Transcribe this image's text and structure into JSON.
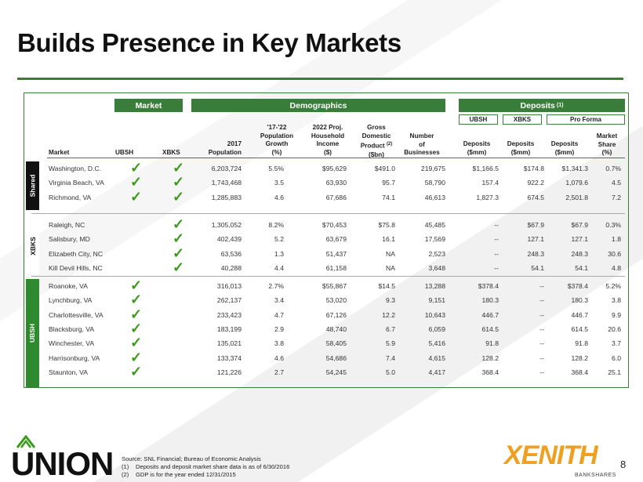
{
  "title": "Builds Presence in Key Markets",
  "headers": {
    "market_box": "Market",
    "demographics_box": "Demographics",
    "deposits_box": "Deposits",
    "deposits_note": "(1)",
    "sub_ubsh": "UBSH",
    "sub_xbks": "XBKS",
    "sub_proforma": "Pro Forma"
  },
  "columns": {
    "market": "Market",
    "ubsh": "UBSH",
    "xbks": "XBKS",
    "pop_l1": "2017",
    "pop_l2": "Population",
    "growth_l1": "'17-'22",
    "growth_l2": "Population",
    "growth_l3": "Growth",
    "growth_l4": "(%)",
    "income_l1": "2022 Proj.",
    "income_l2": "Household",
    "income_l3": "Income",
    "income_l4": "($)",
    "gdp_l1": "Gross",
    "gdp_l2": "Domestic",
    "gdp_l3": "Product",
    "gdp_note": "(2)",
    "gdp_l4": "($bn)",
    "biz_l1": "Number",
    "biz_l2": "of",
    "biz_l3": "Businesses",
    "dep1_l1": "Deposits",
    "dep1_l2": "($mm)",
    "dep2_l1": "Deposits",
    "dep2_l2": "($mm)",
    "dep3_l1": "Deposits",
    "dep3_l2": "($mm)",
    "share_l1": "Market",
    "share_l2": "Share",
    "share_l3": "(%)"
  },
  "check_glyph": "✓",
  "groups": [
    {
      "label": "Shared",
      "rows": [
        {
          "market": "Washington, D.C.",
          "ubsh": true,
          "xbks": true,
          "pop": "6,203,724",
          "growth": "5.5%",
          "income": "$95,629",
          "gdp": "$491.0",
          "biz": "219,675",
          "dep_ubsh": "$1,166.5",
          "dep_xbks": "$174.8",
          "dep_pf": "$1,341.3",
          "share": "0.7%"
        },
        {
          "market": "Virginia Beach, VA",
          "ubsh": true,
          "xbks": true,
          "pop": "1,743,468",
          "growth": "3.5",
          "income": "63,930",
          "gdp": "95.7",
          "biz": "58,790",
          "dep_ubsh": "157.4",
          "dep_xbks": "922.2",
          "dep_pf": "1,079.6",
          "share": "4.5"
        },
        {
          "market": "Richmond, VA",
          "ubsh": true,
          "xbks": true,
          "pop": "1,285,883",
          "growth": "4.6",
          "income": "67,686",
          "gdp": "74.1",
          "biz": "46,613",
          "dep_ubsh": "1,827.3",
          "dep_xbks": "674.5",
          "dep_pf": "2,501.8",
          "share": "7.2"
        }
      ]
    },
    {
      "label": "XBKS",
      "rows": [
        {
          "market": "Raleigh, NC",
          "ubsh": false,
          "xbks": true,
          "pop": "1,305,052",
          "growth": "8.2%",
          "income": "$70,453",
          "gdp": "$75.8",
          "biz": "45,485",
          "dep_ubsh": "--",
          "dep_xbks": "$67.9",
          "dep_pf": "$67.9",
          "share": "0.3%"
        },
        {
          "market": "Salisbury, MD",
          "ubsh": false,
          "xbks": true,
          "pop": "402,439",
          "growth": "5.2",
          "income": "63,679",
          "gdp": "16.1",
          "biz": "17,569",
          "dep_ubsh": "--",
          "dep_xbks": "127.1",
          "dep_pf": "127.1",
          "share": "1.8"
        },
        {
          "market": "Elizabeth City, NC",
          "ubsh": false,
          "xbks": true,
          "pop": "63,536",
          "growth": "1.3",
          "income": "51,437",
          "gdp": "NA",
          "biz": "2,523",
          "dep_ubsh": "--",
          "dep_xbks": "248.3",
          "dep_pf": "248.3",
          "share": "30.6"
        },
        {
          "market": "Kill Devil Hills, NC",
          "ubsh": false,
          "xbks": true,
          "pop": "40,288",
          "growth": "4.4",
          "income": "61,158",
          "gdp": "NA",
          "biz": "3,648",
          "dep_ubsh": "--",
          "dep_xbks": "54.1",
          "dep_pf": "54.1",
          "share": "4.8"
        }
      ]
    },
    {
      "label": "UBSH",
      "rows": [
        {
          "market": "Roanoke, VA",
          "ubsh": true,
          "xbks": false,
          "pop": "316,013",
          "growth": "2.7%",
          "income": "$55,867",
          "gdp": "$14.5",
          "biz": "13,288",
          "dep_ubsh": "$378.4",
          "dep_xbks": "--",
          "dep_pf": "$378.4",
          "share": "5.2%"
        },
        {
          "market": "Lynchburg, VA",
          "ubsh": true,
          "xbks": false,
          "pop": "262,137",
          "growth": "3.4",
          "income": "53,020",
          "gdp": "9.3",
          "biz": "9,151",
          "dep_ubsh": "180.3",
          "dep_xbks": "--",
          "dep_pf": "180.3",
          "share": "3.8"
        },
        {
          "market": "Charlottesville, VA",
          "ubsh": true,
          "xbks": false,
          "pop": "233,423",
          "growth": "4.7",
          "income": "67,126",
          "gdp": "12.2",
          "biz": "10,643",
          "dep_ubsh": "446.7",
          "dep_xbks": "--",
          "dep_pf": "446.7",
          "share": "9.9"
        },
        {
          "market": "Blacksburg, VA",
          "ubsh": true,
          "xbks": false,
          "pop": "183,199",
          "growth": "2.9",
          "income": "48,740",
          "gdp": "6.7",
          "biz": "6,059",
          "dep_ubsh": "614.5",
          "dep_xbks": "--",
          "dep_pf": "614.5",
          "share": "20.6"
        },
        {
          "market": "Winchester, VA",
          "ubsh": true,
          "xbks": false,
          "pop": "135,021",
          "growth": "3.8",
          "income": "58,405",
          "gdp": "5.9",
          "biz": "5,416",
          "dep_ubsh": "91.8",
          "dep_xbks": "--",
          "dep_pf": "91.8",
          "share": "3.7"
        },
        {
          "market": "Harrisonburg, VA",
          "ubsh": true,
          "xbks": false,
          "pop": "133,374",
          "growth": "4.6",
          "income": "54,686",
          "gdp": "7.4",
          "biz": "4,615",
          "dep_ubsh": "128.2",
          "dep_xbks": "--",
          "dep_pf": "128.2",
          "share": "6.0"
        },
        {
          "market": "Staunton, VA",
          "ubsh": true,
          "xbks": false,
          "pop": "121,226",
          "growth": "2.7",
          "income": "54,245",
          "gdp": "5.0",
          "biz": "4,417",
          "dep_ubsh": "368.4",
          "dep_xbks": "--",
          "dep_pf": "368.4",
          "share": "25.1"
        }
      ]
    }
  ],
  "footnotes": {
    "source": "Source: SNL Financial; Bureau of Economic Analysis",
    "n1_num": "(1)",
    "n1_text": "Deposits and deposit market share data is as of 6/30/2016",
    "n2_num": "(2)",
    "n2_text": "GDP is for the year ended 12/31/2015"
  },
  "logos": {
    "union": "UNION",
    "xenith": "XENITH",
    "bankshares": "BANKSHARES"
  },
  "page_number": "8",
  "colors": {
    "accent": "#3a7d3a",
    "check": "#3a9a1a",
    "xenith": "#f0a020"
  }
}
